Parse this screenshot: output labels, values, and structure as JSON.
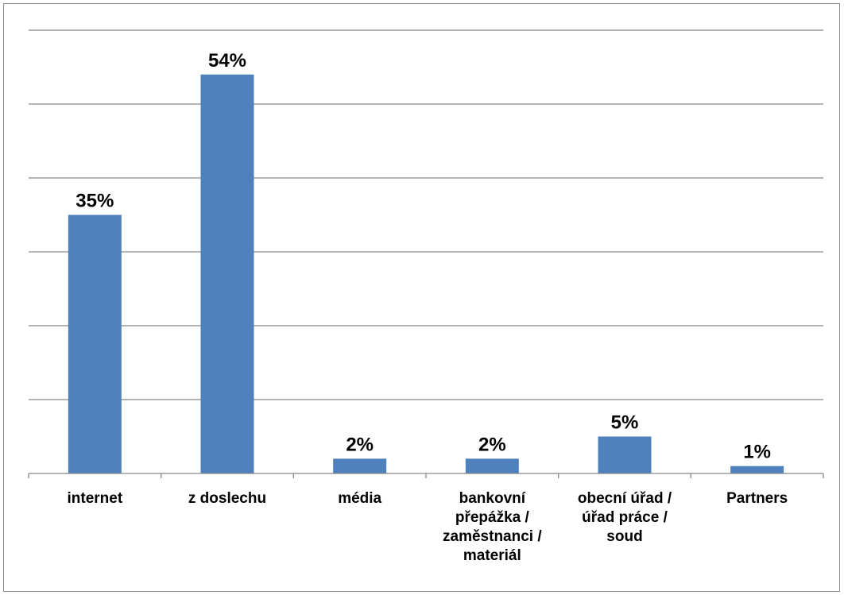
{
  "chart_data": {
    "type": "bar",
    "categories": [
      [
        "internet"
      ],
      [
        "z doslechu"
      ],
      [
        "média"
      ],
      [
        "bankovní",
        "přepážka /",
        "zaměstnanci /",
        "materiál"
      ],
      [
        "obecní úřad /",
        "úřad práce /",
        "soud"
      ],
      [
        "Partners"
      ]
    ],
    "values": [
      35,
      54,
      2,
      2,
      5,
      1
    ],
    "value_labels": [
      "35%",
      "54%",
      "2%",
      "2%",
      "5%",
      "1%"
    ],
    "ylim": [
      0,
      60
    ],
    "gridlines": [
      10,
      20,
      30,
      40,
      50,
      60
    ],
    "bar_color": "#4f81bd",
    "grid": true,
    "title": "",
    "xlabel": "",
    "ylabel": ""
  }
}
